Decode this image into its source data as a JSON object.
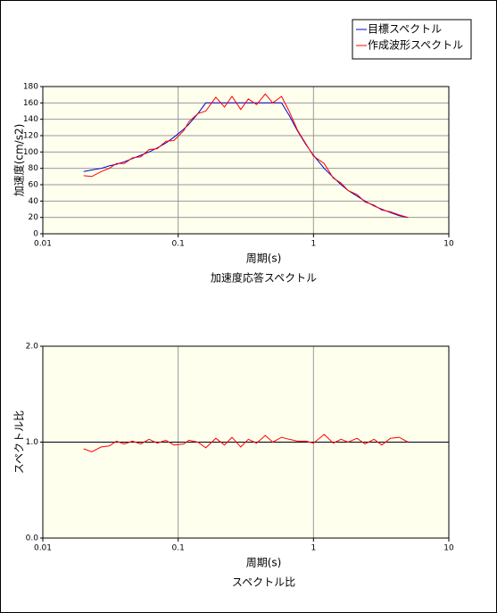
{
  "chart_data": [
    {
      "type": "line",
      "title": "加速度応答スペクトル",
      "xlabel": "周期(s)",
      "ylabel": "加速度(cm/s2)",
      "xscale": "log",
      "xlim": [
        0.01,
        10
      ],
      "xticks": [
        0.01,
        0.1,
        1,
        10
      ],
      "ylim": [
        0,
        180
      ],
      "yticks": [
        0,
        20,
        40,
        60,
        80,
        100,
        120,
        140,
        160,
        180
      ],
      "grid": true,
      "legend": "top-right",
      "series": [
        {
          "name": "目標スペクトル",
          "color": "#0000cc",
          "x": [
            0.02,
            0.023,
            0.027,
            0.031,
            0.035,
            0.04,
            0.046,
            0.053,
            0.061,
            0.07,
            0.081,
            0.093,
            0.11,
            0.12,
            0.14,
            0.16,
            0.19,
            0.22,
            0.25,
            0.29,
            0.33,
            0.38,
            0.44,
            0.5,
            0.58,
            0.66,
            0.76,
            0.88,
            1.0,
            1.2,
            1.4,
            1.6,
            1.8,
            2.1,
            2.4,
            2.8,
            3.2,
            3.7,
            4.3,
            5.0
          ],
          "values": [
            76,
            78,
            80,
            83,
            85,
            88,
            92,
            96,
            100,
            105,
            111,
            118,
            128,
            134,
            147,
            160,
            160,
            160,
            160,
            160,
            160,
            160,
            160,
            160,
            160,
            145,
            126,
            109,
            96,
            80,
            69,
            60,
            53,
            46,
            40,
            34,
            30,
            26,
            22,
            20
          ]
        },
        {
          "name": "作成波形スペクトル",
          "color": "#ff0000",
          "x": [
            0.02,
            0.023,
            0.027,
            0.031,
            0.035,
            0.04,
            0.046,
            0.053,
            0.061,
            0.07,
            0.081,
            0.093,
            0.11,
            0.12,
            0.14,
            0.16,
            0.19,
            0.22,
            0.25,
            0.29,
            0.33,
            0.38,
            0.44,
            0.5,
            0.58,
            0.66,
            0.76,
            0.88,
            1.0,
            1.2,
            1.4,
            1.6,
            1.8,
            2.1,
            2.4,
            2.8,
            3.2,
            3.7,
            4.3,
            5.0
          ],
          "values": [
            71,
            70,
            76,
            80,
            86,
            86,
            93,
            94,
            103,
            104,
            113,
            114,
            126,
            137,
            147,
            150,
            167,
            155,
            168,
            152,
            165,
            158,
            171,
            160,
            168,
            150,
            127,
            110,
            95,
            86,
            68,
            62,
            53,
            48,
            39,
            35,
            29,
            27,
            23,
            20
          ]
        }
      ]
    },
    {
      "type": "line",
      "title": "スペクトル比",
      "xlabel": "周期(s)",
      "ylabel": "スペクトル比",
      "xscale": "log",
      "xlim": [
        0.01,
        10
      ],
      "xticks": [
        0.01,
        0.1,
        1,
        10
      ],
      "ylim": [
        0,
        2
      ],
      "yticks": [
        {
          "value": 0,
          "label": "0.0"
        },
        {
          "value": 1,
          "label": "1.0"
        },
        {
          "value": 2,
          "label": "2.0"
        }
      ],
      "grid": true,
      "reference_line": 1,
      "series": [
        {
          "color": "#ff0000",
          "x": [
            0.02,
            0.023,
            0.027,
            0.031,
            0.035,
            0.04,
            0.046,
            0.053,
            0.061,
            0.07,
            0.081,
            0.093,
            0.11,
            0.12,
            0.14,
            0.16,
            0.19,
            0.22,
            0.25,
            0.29,
            0.33,
            0.38,
            0.44,
            0.5,
            0.58,
            0.66,
            0.76,
            0.88,
            1.0,
            1.2,
            1.4,
            1.6,
            1.8,
            2.1,
            2.4,
            2.8,
            3.2,
            3.7,
            4.3,
            5.0
          ],
          "values": [
            0.93,
            0.9,
            0.95,
            0.96,
            1.01,
            0.98,
            1.01,
            0.98,
            1.03,
            0.99,
            1.02,
            0.97,
            0.98,
            1.02,
            1.0,
            0.94,
            1.04,
            0.97,
            1.05,
            0.95,
            1.03,
            0.99,
            1.07,
            1.0,
            1.05,
            1.03,
            1.01,
            1.01,
            0.99,
            1.08,
            0.99,
            1.03,
            1.0,
            1.04,
            0.98,
            1.03,
            0.97,
            1.04,
            1.05,
            1.0
          ]
        }
      ]
    }
  ]
}
